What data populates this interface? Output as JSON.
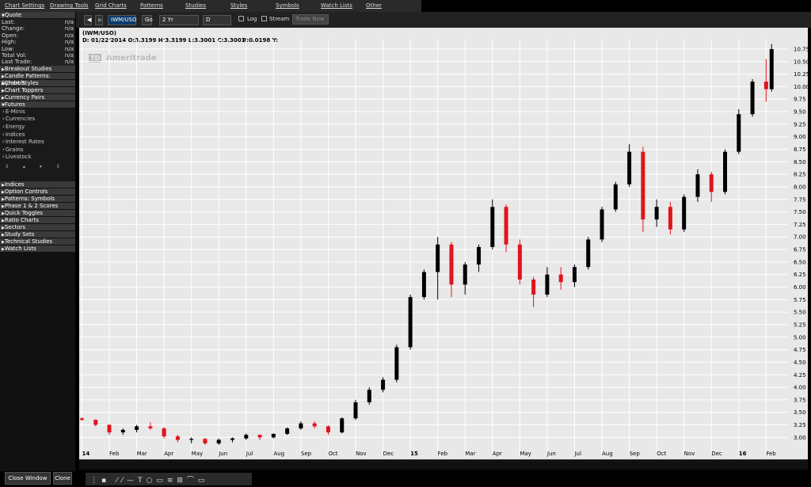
{
  "menu": [
    "Chart Settings",
    "Drawing Tools",
    "Grid Charts",
    "Patterns",
    "Studies",
    "Styles",
    "Symbols",
    "Watch Lists",
    "Other"
  ],
  "quote": {
    "title": "Quote",
    "rows": [
      {
        "label": "Last:",
        "value": "n/a"
      },
      {
        "label": "Change:",
        "value": "n/a"
      },
      {
        "label": "Open:",
        "value": "n/a"
      },
      {
        "label": "High:",
        "value": "n/a"
      },
      {
        "label": "Low:",
        "value": "n/a"
      },
      {
        "label": "Total Vol:",
        "value": "n/a"
      },
      {
        "label": "Last Trade:",
        "value": "n/a"
      }
    ]
  },
  "sections_top": [
    "Breakout Studies",
    "Candle Patterns: Symbols",
    "Chart Styles",
    "Chart Toppers",
    "Currency Pairs"
  ],
  "futures": {
    "title": "Futures",
    "items": [
      "E-Minis",
      "Currencies",
      "Energy",
      "Indices",
      "Interest Rates",
      "Grains",
      "Livestock"
    ]
  },
  "sections_bottom": [
    "Indices",
    "Option Controls",
    "Patterns: Symbols",
    "Phase 1 & 2 Scores",
    "Quick Toggles",
    "Ratio Charts",
    "Sectors",
    "Study Sets",
    "Technical Studies",
    "Watch Lists"
  ],
  "buttons": [
    "Close Window",
    "Clone"
  ],
  "toolbar": {
    "symbol": "IWM/USO",
    "go": "Go",
    "period": "2 Yr",
    "interval": "D",
    "log": "Log",
    "stream": "Stream",
    "trade": "Trade Now"
  },
  "chart_header": {
    "symbol": "(IWM/USO)",
    "info": "D: 01/22/2014 O:3.3199 H:3.3199 L:3.3001 C:3.3001",
    "extra": "R:0.0198 Y:"
  },
  "watermark": {
    "logo": "TD",
    "name": "Ameritrade"
  },
  "chart_data": {
    "type": "candlestick",
    "up_color": "#000000",
    "down_color": "#e0141e",
    "x": [
      0,
      0.5,
      1,
      1.5,
      2,
      2.5,
      3,
      3.5,
      4,
      4.5,
      5,
      5.5,
      6,
      6.5,
      7,
      7.5,
      8,
      8.5,
      9,
      9.5,
      10,
      10.5,
      11,
      11.5,
      12,
      12.5,
      13,
      13.5,
      14,
      14.5,
      15,
      15.5,
      16,
      16.5,
      17,
      17.5,
      18,
      18.5,
      19,
      19.5,
      20,
      20.5,
      21,
      21.5,
      22,
      22.5,
      23,
      23.5,
      24,
      24.5,
      25,
      25.2
    ],
    "open": [
      3.38,
      3.35,
      3.25,
      3.1,
      3.15,
      3.22,
      3.18,
      3.02,
      2.95,
      2.97,
      2.88,
      2.95,
      2.98,
      3.05,
      3.0,
      3.07,
      3.18,
      3.28,
      3.22,
      3.1,
      3.38,
      3.7,
      3.95,
      4.15,
      4.8,
      5.8,
      6.3,
      6.85,
      6.05,
      6.45,
      6.8,
      7.6,
      6.85,
      6.15,
      5.85,
      6.25,
      6.1,
      6.4,
      6.95,
      7.55,
      8.05,
      8.7,
      7.35,
      7.6,
      7.15,
      7.8,
      8.25,
      7.9,
      8.7,
      9.45,
      10.1,
      9.95
    ],
    "high": [
      3.4,
      3.36,
      3.26,
      3.18,
      3.25,
      3.3,
      3.2,
      3.05,
      3.0,
      2.99,
      2.98,
      3.0,
      3.08,
      3.06,
      3.08,
      3.2,
      3.32,
      3.32,
      3.24,
      3.4,
      3.75,
      4.0,
      4.2,
      4.85,
      5.85,
      6.35,
      7.0,
      6.9,
      6.5,
      6.85,
      7.75,
      7.65,
      6.95,
      6.2,
      6.4,
      6.4,
      6.45,
      7.0,
      7.6,
      8.1,
      8.85,
      8.8,
      7.75,
      7.7,
      7.85,
      8.35,
      8.3,
      8.75,
      9.55,
      10.15,
      10.55,
      10.85
    ],
    "low": [
      3.33,
      3.22,
      3.05,
      3.05,
      3.1,
      3.15,
      2.98,
      2.9,
      2.88,
      2.85,
      2.85,
      2.9,
      2.95,
      2.95,
      2.98,
      3.05,
      3.15,
      3.18,
      3.05,
      3.08,
      3.35,
      3.65,
      3.9,
      4.1,
      4.75,
      5.75,
      5.75,
      5.8,
      5.85,
      6.3,
      6.75,
      6.7,
      6.05,
      5.6,
      5.8,
      5.95,
      6.0,
      6.35,
      6.9,
      7.5,
      8.0,
      7.1,
      7.2,
      7.05,
      7.1,
      7.7,
      7.7,
      7.85,
      8.65,
      9.4,
      9.7,
      9.9
    ],
    "close": [
      3.35,
      3.25,
      3.1,
      3.15,
      3.22,
      3.18,
      3.02,
      2.95,
      2.97,
      2.88,
      2.95,
      2.98,
      3.05,
      3.0,
      3.07,
      3.18,
      3.28,
      3.22,
      3.1,
      3.38,
      3.7,
      3.95,
      4.15,
      4.8,
      5.8,
      6.3,
      6.85,
      6.05,
      6.45,
      6.8,
      7.6,
      6.85,
      6.15,
      5.85,
      6.25,
      6.1,
      6.4,
      6.95,
      7.55,
      8.05,
      8.7,
      7.35,
      7.6,
      7.15,
      7.8,
      8.25,
      7.9,
      8.7,
      9.45,
      10.1,
      9.95,
      10.75
    ],
    "xlim": [
      -0.1,
      25.8
    ],
    "xticks": [
      {
        "value": 0,
        "label": "14"
      },
      {
        "value": 1,
        "label": "Feb"
      },
      {
        "value": 2,
        "label": "Mar"
      },
      {
        "value": 3,
        "label": "Apr"
      },
      {
        "value": 4,
        "label": "May"
      },
      {
        "value": 5,
        "label": "Jun"
      },
      {
        "value": 6,
        "label": "Jul"
      },
      {
        "value": 7,
        "label": "Aug"
      },
      {
        "value": 8,
        "label": "Sep"
      },
      {
        "value": 9,
        "label": "Oct"
      },
      {
        "value": 10,
        "label": "Nov"
      },
      {
        "value": 11,
        "label": "Dec"
      },
      {
        "value": 12,
        "label": "15"
      },
      {
        "value": 13,
        "label": "Feb"
      },
      {
        "value": 14,
        "label": "Mar"
      },
      {
        "value": 15,
        "label": "Apr"
      },
      {
        "value": 16,
        "label": "May"
      },
      {
        "value": 17,
        "label": "Jun"
      },
      {
        "value": 18,
        "label": "Jul"
      },
      {
        "value": 19,
        "label": "Aug"
      },
      {
        "value": 20,
        "label": "Sep"
      },
      {
        "value": 21,
        "label": "Oct"
      },
      {
        "value": 22,
        "label": "Nov"
      },
      {
        "value": 23,
        "label": "Dec"
      },
      {
        "value": 24,
        "label": "16"
      },
      {
        "value": 25,
        "label": "Feb"
      }
    ],
    "ylim": [
      2.8,
      10.86
    ],
    "yticks": [
      {
        "value": 3,
        "label": "3.00"
      },
      {
        "value": 3.25,
        "label": "3.25"
      },
      {
        "value": 3.5,
        "label": "3.50"
      },
      {
        "value": 3.75,
        "label": "3.75"
      },
      {
        "value": 4,
        "label": "4.00"
      },
      {
        "value": 4.25,
        "label": "4.25"
      },
      {
        "value": 4.5,
        "label": "4.50"
      },
      {
        "value": 4.75,
        "label": "4.75"
      },
      {
        "value": 5,
        "label": "5.00"
      },
      {
        "value": 5.25,
        "label": "5.25"
      },
      {
        "value": 5.5,
        "label": "5.50"
      },
      {
        "value": 5.75,
        "label": "5.75"
      },
      {
        "value": 6,
        "label": "6.00"
      },
      {
        "value": 6.25,
        "label": "6.25"
      },
      {
        "value": 6.5,
        "label": "6.50"
      },
      {
        "value": 6.75,
        "label": "6.75"
      },
      {
        "value": 7,
        "label": "7.00"
      },
      {
        "value": 7.25,
        "label": "7.25"
      },
      {
        "value": 7.5,
        "label": "7.50"
      },
      {
        "value": 7.75,
        "label": "7.75"
      },
      {
        "value": 8,
        "label": "8.00"
      },
      {
        "value": 8.25,
        "label": "8.25"
      },
      {
        "value": 8.5,
        "label": "8.50"
      },
      {
        "value": 8.75,
        "label": "8.75"
      },
      {
        "value": 9,
        "label": "9.00"
      },
      {
        "value": 9.25,
        "label": "9.25"
      },
      {
        "value": 9.5,
        "label": "9.50"
      },
      {
        "value": 9.75,
        "label": "9.75"
      },
      {
        "value": 10,
        "label": "10.00"
      },
      {
        "value": 10.25,
        "label": "10.25"
      },
      {
        "value": 10.5,
        "label": "10.50"
      },
      {
        "value": 10.75,
        "label": "10.75"
      }
    ],
    "grid": true
  }
}
